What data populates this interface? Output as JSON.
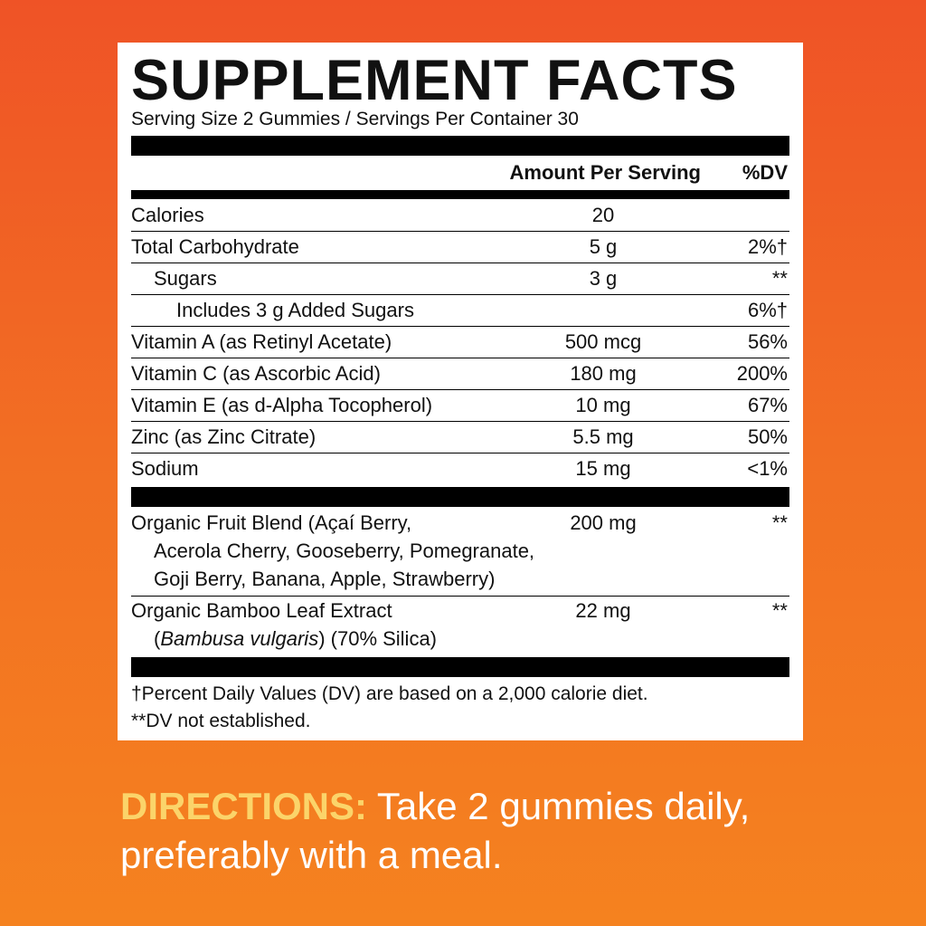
{
  "panel": {
    "title": "SUPPLEMENT FACTS",
    "serving": "Serving Size 2 Gummies / Servings Per Container 30",
    "header": {
      "amount": "Amount Per Serving",
      "dv": "%DV"
    },
    "rows": [
      {
        "name": "Calories",
        "amount": "20"
      },
      {
        "name": "Total Carbohydrate",
        "amount": "5 g",
        "dv": "2%†"
      },
      {
        "name": "Sugars",
        "amount": "3 g",
        "dv": "**"
      },
      {
        "name": "Includes 3 g Added Sugars",
        "dv": "6%†"
      },
      {
        "name": "Vitamin A (as Retinyl Acetate)",
        "amount": "500 mcg",
        "dv": "56%"
      },
      {
        "name": "Vitamin C (as Ascorbic Acid)",
        "amount": "180 mg",
        "dv": "200%"
      },
      {
        "name": "Vitamin E (as d-Alpha Tocopherol)",
        "amount": "10 mg",
        "dv": "67%"
      },
      {
        "name": "Zinc (as Zinc Citrate)",
        "amount": "5.5 mg",
        "dv": "50%"
      },
      {
        "name": "Sodium",
        "amount": "15 mg",
        "dv": "<1%"
      }
    ],
    "blends": [
      {
        "lines": [
          "Organic Fruit Blend (Açaí Berry,",
          "Acerola Cherry, Gooseberry, Pomegranate,",
          "Goji Berry, Banana, Apple, Strawberry)"
        ],
        "amount": "200 mg",
        "dv": "**"
      },
      {
        "lines": [
          "Organic Bamboo Leaf Extract"
        ],
        "latin": [
          "(",
          "Bambusa vulgaris",
          ") (70% Silica)"
        ],
        "amount": "22 mg",
        "dv": "**"
      }
    ],
    "footnotes": [
      "†Percent Daily Values (DV) are based on a 2,000 calorie diet.",
      "**DV not established."
    ]
  },
  "directions": {
    "label": "DIRECTIONS:",
    "text": "Take 2 gummies daily, preferably with a meal."
  }
}
